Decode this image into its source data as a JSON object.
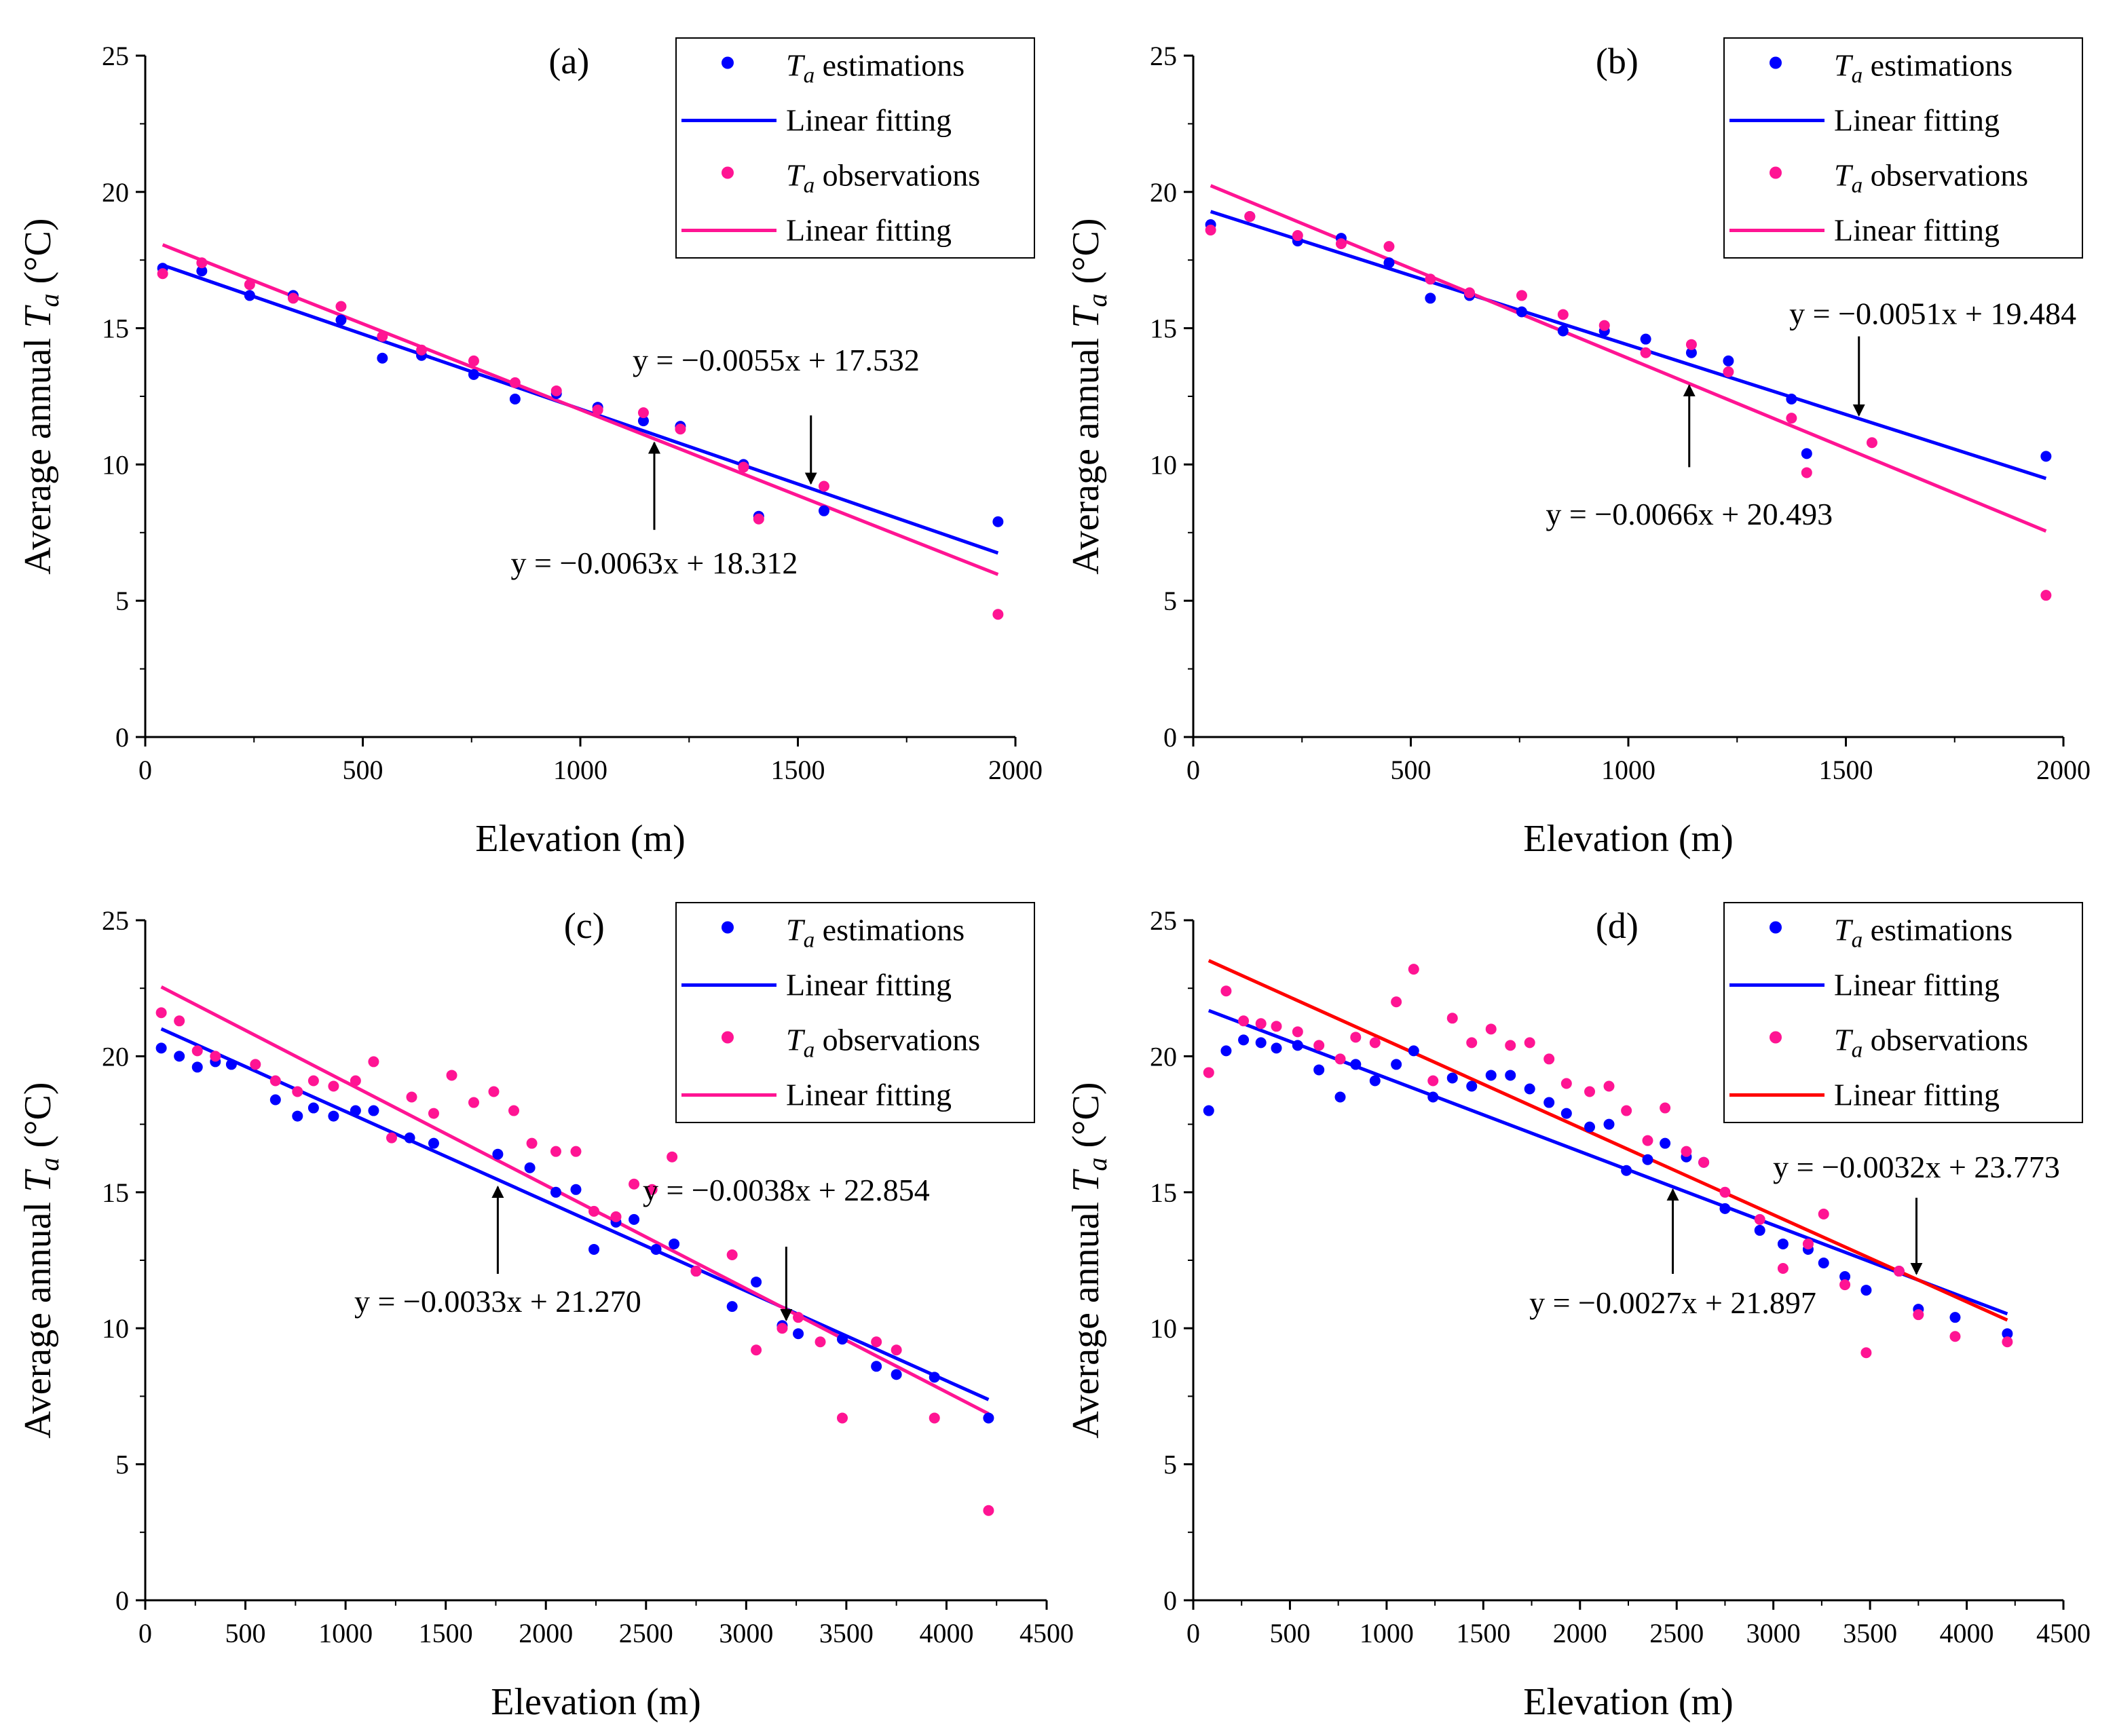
{
  "colors": {
    "estimation": "#0000ff",
    "observation": "#ff1493",
    "fit_red": "#ff0000",
    "axis": "#000000"
  },
  "chart_data": [
    {
      "panel": "(a)",
      "type": "scatter",
      "xlabel": "Elevation (m)",
      "ylabel": "Average annual Ta (°C)",
      "xlim": [
        0,
        2000
      ],
      "ylim": [
        0,
        25
      ],
      "xticks": [
        "0",
        "500",
        "1000",
        "1500",
        "2000"
      ],
      "yticks": [
        "0",
        "5",
        "10",
        "15",
        "20",
        "25"
      ],
      "legend_position": "top-right",
      "series": [
        {
          "name": "Ta estimations",
          "kind": "points",
          "color": "#0000ff",
          "x": [
            40,
            130,
            240,
            340,
            450,
            545,
            635,
            755,
            850,
            945,
            1040,
            1145,
            1230,
            1375,
            1410,
            1560,
            1960
          ],
          "y": [
            17.2,
            17.1,
            16.2,
            16.2,
            15.3,
            13.9,
            14.0,
            13.3,
            12.4,
            12.6,
            12.1,
            11.6,
            11.4,
            10.0,
            8.1,
            8.3,
            7.9
          ]
        },
        {
          "name": "Linear fitting",
          "kind": "fit",
          "color": "#0000ff",
          "slope": -0.0055,
          "intercept": 17.532,
          "x_range": [
            40,
            1960
          ]
        },
        {
          "name": "Ta observations",
          "kind": "points",
          "color": "#ff1493",
          "x": [
            40,
            130,
            240,
            340,
            450,
            545,
            635,
            755,
            850,
            945,
            1040,
            1145,
            1230,
            1375,
            1410,
            1560,
            1960
          ],
          "y": [
            17.0,
            17.4,
            16.6,
            16.1,
            15.8,
            14.7,
            14.2,
            13.8,
            13.0,
            12.7,
            12.0,
            11.9,
            11.3,
            9.9,
            8.0,
            9.2,
            4.5
          ]
        },
        {
          "name": "Linear fitting",
          "kind": "fit",
          "color": "#ff1493",
          "slope": -0.0063,
          "intercept": 18.312,
          "x_range": [
            40,
            1960
          ]
        }
      ],
      "annotations": [
        {
          "text": "y = −0.0055x + 17.532",
          "text_x": 1450,
          "text_y": 13.45,
          "anchor": "middle",
          "arrow_from": [
            1530,
            11.8
          ],
          "arrow_to": [
            1530,
            9.3
          ]
        },
        {
          "text": "y = −0.0063x + 18.312",
          "text_x": 1170,
          "text_y": 6.0,
          "anchor": "middle",
          "arrow_from": [
            1170,
            7.6
          ],
          "arrow_to": [
            1170,
            10.8
          ]
        }
      ]
    },
    {
      "panel": "(b)",
      "type": "scatter",
      "xlabel": "Elevation (m)",
      "ylabel": "Average annual Ta (°C)",
      "xlim": [
        0,
        2000
      ],
      "ylim": [
        0,
        25
      ],
      "xticks": [
        "0",
        "500",
        "1000",
        "1500",
        "2000"
      ],
      "yticks": [
        "0",
        "5",
        "10",
        "15",
        "20",
        "25"
      ],
      "legend_position": "top-right",
      "series": [
        {
          "name": "Ta estimations",
          "kind": "points",
          "color": "#0000ff",
          "x": [
            40,
            130,
            240,
            340,
            450,
            545,
            635,
            755,
            850,
            945,
            1040,
            1145,
            1230,
            1375,
            1410,
            1960
          ],
          "y": [
            18.8,
            19.1,
            18.2,
            18.3,
            17.4,
            16.1,
            16.2,
            15.6,
            14.9,
            14.9,
            14.6,
            14.1,
            13.8,
            12.4,
            10.4,
            10.3
          ]
        },
        {
          "name": "Linear fitting",
          "kind": "fit",
          "color": "#0000ff",
          "slope": -0.0051,
          "intercept": 19.484,
          "x_range": [
            40,
            1960
          ]
        },
        {
          "name": "Ta observations",
          "kind": "points",
          "color": "#ff1493",
          "x": [
            40,
            130,
            240,
            340,
            450,
            545,
            635,
            755,
            850,
            945,
            1040,
            1145,
            1230,
            1375,
            1410,
            1560,
            1960
          ],
          "y": [
            18.6,
            19.1,
            18.4,
            18.1,
            18.0,
            16.8,
            16.3,
            16.2,
            15.5,
            15.1,
            14.1,
            14.4,
            13.4,
            11.7,
            9.7,
            10.8,
            5.2
          ]
        },
        {
          "name": "Linear fitting",
          "kind": "fit",
          "color": "#ff1493",
          "slope": -0.0066,
          "intercept": 20.493,
          "x_range": [
            40,
            1960
          ]
        }
      ],
      "annotations": [
        {
          "text": "y = −0.0051x + 19.484",
          "text_x": 1370,
          "text_y": 15.15,
          "anchor": "start",
          "arrow_from": [
            1530,
            14.7
          ],
          "arrow_to": [
            1530,
            11.8
          ]
        },
        {
          "text": "y = −0.0066x + 20.493",
          "text_x": 1140,
          "text_y": 7.8,
          "anchor": "middle",
          "arrow_from": [
            1140,
            9.9
          ],
          "arrow_to": [
            1140,
            12.9
          ]
        }
      ]
    },
    {
      "panel": "(c)",
      "type": "scatter",
      "xlabel": "Elevation (m)",
      "ylabel": "Average annual Ta (°C)",
      "xlim": [
        0,
        4500
      ],
      "ylim": [
        0,
        25
      ],
      "xticks": [
        "0",
        "500",
        "1000",
        "1500",
        "2000",
        "2500",
        "3000",
        "3500",
        "4000",
        "4500"
      ],
      "yticks": [
        "0",
        "5",
        "10",
        "15",
        "20",
        "25"
      ],
      "legend_position": "top-right",
      "series": [
        {
          "name": "Ta estimations",
          "kind": "points",
          "color": "#0000ff",
          "x": [
            80,
            170,
            260,
            350,
            430,
            650,
            760,
            840,
            940,
            1050,
            1140,
            1320,
            1440,
            1760,
            1920,
            2050,
            2150,
            2240,
            2350,
            2440,
            2550,
            2640,
            2750,
            2930,
            3050,
            3180,
            3260,
            3480,
            3650,
            3750,
            3940,
            4210
          ],
          "y": [
            20.3,
            20.0,
            19.6,
            19.8,
            19.7,
            18.4,
            17.8,
            18.1,
            17.8,
            18.0,
            18.0,
            17.0,
            16.8,
            16.4,
            15.9,
            15.0,
            15.1,
            12.9,
            13.9,
            14.0,
            12.9,
            13.1,
            12.1,
            10.8,
            11.7,
            10.1,
            9.8,
            9.6,
            8.6,
            8.3,
            8.2,
            6.7
          ]
        },
        {
          "name": "Linear fitting",
          "kind": "fit",
          "color": "#0000ff",
          "slope": -0.0033,
          "intercept": 21.27,
          "x_range": [
            80,
            4210
          ]
        },
        {
          "name": "Ta observations",
          "kind": "points",
          "color": "#ff1493",
          "x": [
            80,
            170,
            260,
            350,
            550,
            650,
            760,
            840,
            940,
            1050,
            1140,
            1230,
            1330,
            1440,
            1530,
            1640,
            1740,
            1840,
            1930,
            2050,
            2150,
            2240,
            2350,
            2440,
            2530,
            2630,
            2750,
            2930,
            3050,
            3180,
            3260,
            3370,
            3480,
            3650,
            3750,
            3940,
            4210
          ],
          "y": [
            21.6,
            21.3,
            20.2,
            20.0,
            19.7,
            19.1,
            18.7,
            19.1,
            18.9,
            19.1,
            19.8,
            17.0,
            18.5,
            17.9,
            19.3,
            18.3,
            18.7,
            18.0,
            16.8,
            16.5,
            16.5,
            14.3,
            14.1,
            15.3,
            15.1,
            16.3,
            12.1,
            12.7,
            9.2,
            10.0,
            10.4,
            9.5,
            6.7,
            9.5,
            9.2,
            6.7,
            3.3
          ]
        },
        {
          "name": "Linear fitting",
          "kind": "fit",
          "color": "#ff1493",
          "slope": -0.0038,
          "intercept": 22.854,
          "x_range": [
            80,
            4210
          ]
        }
      ],
      "annotations": [
        {
          "text": "y = −0.0038x + 22.854",
          "text_x": 3200,
          "text_y": 14.7,
          "anchor": "middle",
          "arrow_from": [
            3200,
            13.0
          ],
          "arrow_to": [
            3200,
            10.3
          ]
        },
        {
          "text": "y = −0.0033x + 21.270",
          "text_x": 1760,
          "text_y": 10.6,
          "anchor": "middle",
          "arrow_from": [
            1760,
            12.0
          ],
          "arrow_to": [
            1760,
            15.2
          ]
        }
      ]
    },
    {
      "panel": "(d)",
      "type": "scatter",
      "xlabel": "Elevation (m)",
      "ylabel": "Average annual Ta (°C)",
      "xlim": [
        0,
        4500
      ],
      "ylim": [
        0,
        25
      ],
      "xticks": [
        "0",
        "500",
        "1000",
        "1500",
        "2000",
        "2500",
        "3000",
        "3500",
        "4000",
        "4500"
      ],
      "yticks": [
        "0",
        "5",
        "10",
        "15",
        "20",
        "25"
      ],
      "legend_position": "top-right",
      "series": [
        {
          "name": "Ta estimations",
          "kind": "points",
          "color": "#0000ff",
          "x": [
            80,
            170,
            260,
            350,
            430,
            540,
            650,
            760,
            840,
            940,
            1050,
            1140,
            1240,
            1340,
            1440,
            1540,
            1640,
            1740,
            1840,
            1930,
            2050,
            2150,
            2240,
            2350,
            2440,
            2550,
            2640,
            2750,
            2930,
            3050,
            3180,
            3260,
            3370,
            3480,
            3650,
            3750,
            3940,
            4210
          ],
          "y": [
            18.0,
            20.2,
            20.6,
            20.5,
            20.3,
            20.4,
            19.5,
            18.5,
            19.7,
            19.1,
            19.7,
            20.2,
            18.5,
            19.2,
            18.9,
            19.3,
            19.3,
            18.8,
            18.3,
            17.9,
            17.4,
            17.5,
            15.8,
            16.2,
            16.8,
            16.3,
            16.1,
            14.4,
            13.6,
            13.1,
            12.9,
            12.4,
            11.9,
            11.4,
            12.1,
            10.7,
            10.4,
            9.8
          ]
        },
        {
          "name": "Linear fitting",
          "kind": "fit",
          "color": "#0000ff",
          "slope": -0.0027,
          "intercept": 21.897,
          "x_range": [
            80,
            4210
          ]
        },
        {
          "name": "Ta observations",
          "kind": "points",
          "color": "#ff1493",
          "x": [
            80,
            170,
            260,
            350,
            430,
            540,
            650,
            760,
            840,
            940,
            1050,
            1140,
            1240,
            1340,
            1440,
            1540,
            1640,
            1740,
            1840,
            1930,
            2050,
            2150,
            2240,
            2350,
            2440,
            2550,
            2640,
            2750,
            2930,
            3050,
            3180,
            3260,
            3370,
            3480,
            3650,
            3750,
            3940,
            4210
          ],
          "y": [
            19.4,
            22.4,
            21.3,
            21.2,
            21.1,
            20.9,
            20.4,
            19.9,
            20.7,
            20.5,
            22.0,
            23.2,
            19.1,
            21.4,
            20.5,
            21.0,
            20.4,
            20.5,
            19.9,
            19.0,
            18.7,
            18.9,
            18.0,
            16.9,
            18.1,
            16.5,
            16.1,
            15.0,
            14.0,
            12.2,
            13.1,
            14.2,
            11.6,
            9.1,
            12.1,
            10.5,
            9.7,
            9.5
          ]
        },
        {
          "name": "Linear fitting",
          "kind": "fit",
          "color": "#ff0000",
          "slope": -0.0032,
          "intercept": 23.773,
          "x_range": [
            80,
            4210
          ]
        }
      ],
      "annotations": [
        {
          "text": "y = −0.0032x + 23.773",
          "text_x": 3740,
          "text_y": 15.55,
          "anchor": "middle",
          "arrow_from": [
            3740,
            14.8
          ],
          "arrow_to": [
            3740,
            12.0
          ]
        },
        {
          "text": "y = −0.0027x + 21.897",
          "text_x": 2480,
          "text_y": 10.55,
          "anchor": "middle",
          "arrow_from": [
            2480,
            12.0
          ],
          "arrow_to": [
            2480,
            15.1
          ]
        }
      ]
    }
  ]
}
